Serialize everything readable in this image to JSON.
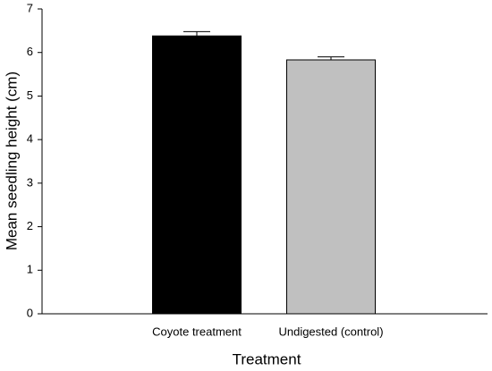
{
  "chart_data": {
    "type": "bar",
    "xlabel": "Treatment",
    "ylabel": "Mean seedling height (cm)",
    "categories": [
      "Coyote treatment",
      "Undigested (control)"
    ],
    "values": [
      6.38,
      5.83
    ],
    "errors": [
      0.1,
      0.07
    ],
    "colors": [
      "#000000",
      "#c0c0c0"
    ],
    "ylim": [
      0,
      7
    ],
    "yticks": [
      0,
      1,
      2,
      3,
      4,
      5,
      6,
      7
    ],
    "grid": false
  }
}
